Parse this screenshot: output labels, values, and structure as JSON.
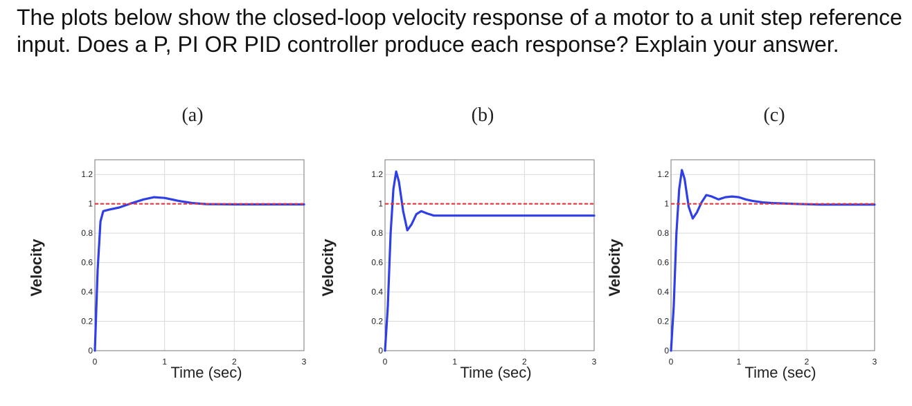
{
  "question": {
    "text": "The plots below show the closed-loop velocity response of a motor to a unit step reference input. Does a P, PI OR PID controller produce each response? Explain your answer."
  },
  "colors": {
    "response": "#2f3fe6",
    "reference": "#e8343a",
    "grid": "#d9d9d9",
    "axis": "#777777",
    "text": "#222222"
  },
  "chart_data": [
    {
      "type": "line",
      "title": "(a)",
      "xlabel": "Time (sec)",
      "ylabel": "Velocity",
      "xlim": [
        0,
        3
      ],
      "ylim": [
        0,
        1.3
      ],
      "xticks": [
        "0",
        "1",
        "2",
        "3"
      ],
      "yticks": [
        "0",
        "0.2",
        "0.4",
        "0.6",
        "0.8",
        "1",
        "1.2"
      ],
      "series": [
        {
          "name": "response",
          "x": [
            0,
            0.04,
            0.08,
            0.12,
            0.2,
            0.35,
            0.5,
            0.7,
            0.85,
            1.0,
            1.2,
            1.4,
            1.6,
            1.8,
            2.0,
            2.5,
            3.0
          ],
          "y": [
            0,
            0.55,
            0.88,
            0.95,
            0.96,
            0.975,
            1.0,
            1.03,
            1.045,
            1.04,
            1.02,
            1.005,
            0.998,
            0.997,
            0.996,
            0.996,
            0.996
          ]
        },
        {
          "name": "reference",
          "x": [
            0,
            3
          ],
          "y": [
            1,
            1
          ]
        }
      ]
    },
    {
      "type": "line",
      "title": "(b)",
      "xlabel": "Time (sec)",
      "ylabel": "Velocity",
      "xlim": [
        0,
        3
      ],
      "ylim": [
        0,
        1.3
      ],
      "xticks": [
        "0",
        "1",
        "2",
        "3"
      ],
      "yticks": [
        "0",
        "0.2",
        "0.4",
        "0.6",
        "0.8",
        "1",
        "1.2"
      ],
      "series": [
        {
          "name": "response",
          "x": [
            0,
            0.04,
            0.08,
            0.12,
            0.16,
            0.2,
            0.26,
            0.32,
            0.38,
            0.45,
            0.52,
            0.6,
            0.7,
            0.8,
            1.0,
            1.5,
            2.0,
            2.5,
            3.0
          ],
          "y": [
            0,
            0.3,
            0.8,
            1.1,
            1.22,
            1.15,
            0.95,
            0.82,
            0.86,
            0.93,
            0.95,
            0.935,
            0.92,
            0.92,
            0.92,
            0.92,
            0.92,
            0.92,
            0.92
          ]
        },
        {
          "name": "reference",
          "x": [
            0,
            3
          ],
          "y": [
            1,
            1
          ]
        }
      ]
    },
    {
      "type": "line",
      "title": "(c)",
      "xlabel": "Time (sec)",
      "ylabel": "Velocity",
      "xlim": [
        0,
        3
      ],
      "ylim": [
        0,
        1.3
      ],
      "xticks": [
        "0",
        "1",
        "2",
        "3"
      ],
      "yticks": [
        "0",
        "0.2",
        "0.4",
        "0.6",
        "0.8",
        "1",
        "1.2"
      ],
      "series": [
        {
          "name": "response",
          "x": [
            0,
            0.04,
            0.08,
            0.12,
            0.16,
            0.2,
            0.26,
            0.32,
            0.38,
            0.45,
            0.52,
            0.6,
            0.7,
            0.8,
            0.9,
            1.0,
            1.1,
            1.2,
            1.35,
            1.5,
            1.8,
            2.2,
            2.6,
            3.0
          ],
          "y": [
            0,
            0.3,
            0.8,
            1.1,
            1.23,
            1.17,
            0.98,
            0.9,
            0.94,
            1.01,
            1.06,
            1.05,
            1.03,
            1.045,
            1.05,
            1.045,
            1.03,
            1.02,
            1.01,
            1.005,
            1.0,
            0.995,
            0.995,
            0.995
          ]
        },
        {
          "name": "reference",
          "x": [
            0,
            3
          ],
          "y": [
            1,
            1
          ]
        }
      ]
    }
  ]
}
